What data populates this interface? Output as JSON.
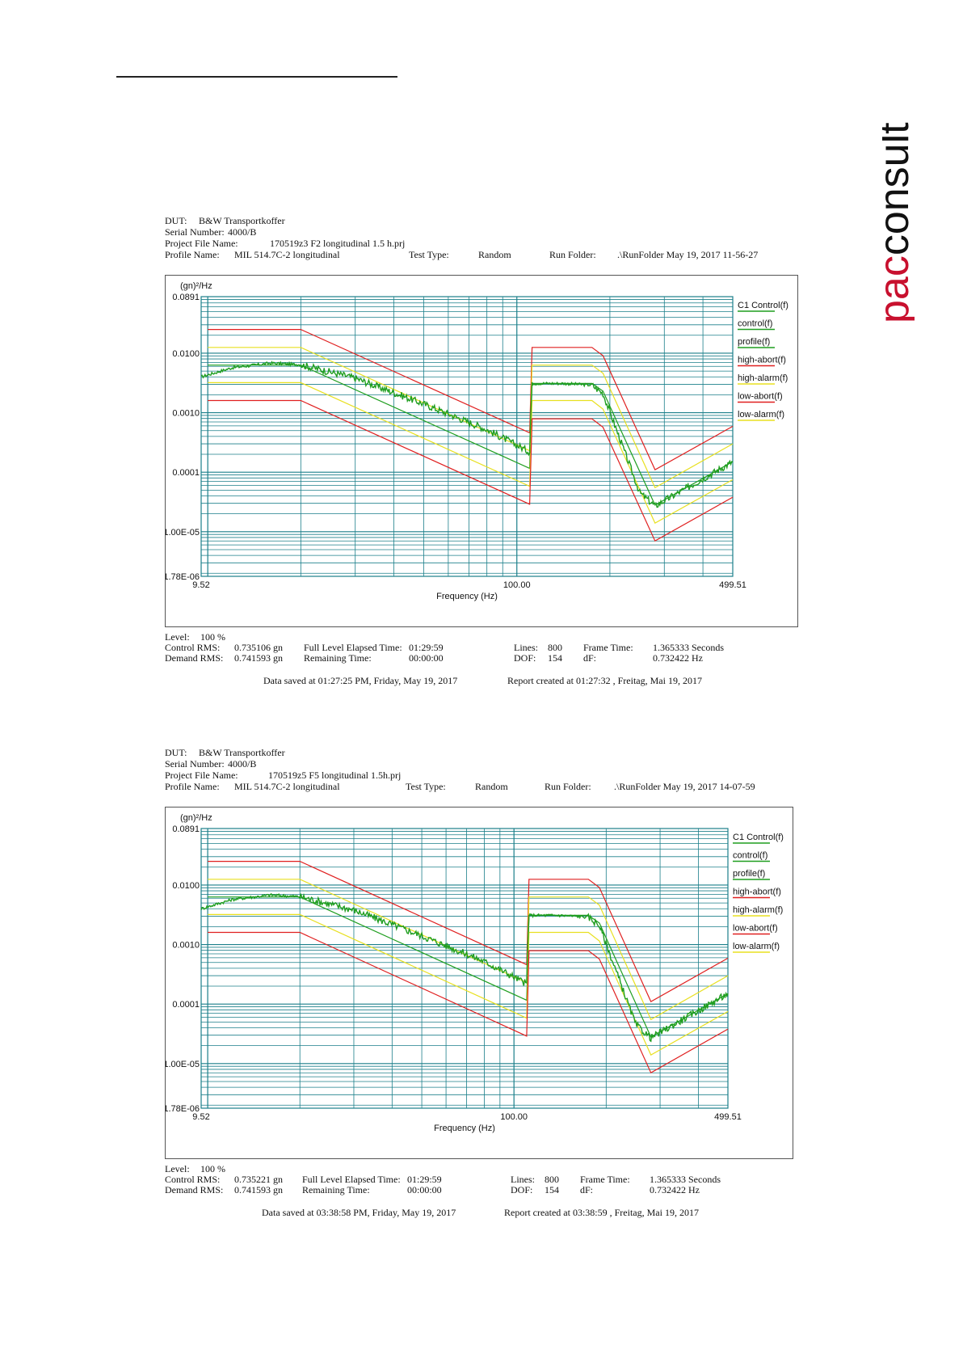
{
  "logo": {
    "pac": "pac",
    "rest": "consult",
    "pac_color": "#c8102e",
    "rest_color": "#111111"
  },
  "reports": [
    {
      "header": {
        "dut_label": "DUT:",
        "dut": "B&W Transportkoffer",
        "serial_label": "Serial Number:",
        "serial": "4000/B",
        "project_label": "Project File Name:",
        "project": "170519z3 F2 longitudinal 1.5 h.prj",
        "profile_label": "Profile Name:",
        "profile": "MIL 514.7C-2 longitudinal",
        "test_type_label": "Test Type:",
        "test_type": "Random",
        "run_folder_label": "Run Folder:",
        "run_folder": ".\\RunFolder May 19, 2017 11-56-27"
      },
      "footer": {
        "level_label": "Level:",
        "level": "100 %",
        "control_rms_label": "Control RMS:",
        "control_rms": "0.735106 gn",
        "demand_rms_label": "Demand RMS:",
        "demand_rms": "0.741593 gn",
        "elapsed_label": "Full Level Elapsed Time:",
        "elapsed": "01:29:59",
        "remaining_label": "Remaining Time:",
        "remaining": "00:00:00",
        "lines_label": "Lines:",
        "lines": "800",
        "dof_label": "DOF:",
        "dof": "154",
        "frame_time_label": "Frame Time:",
        "frame_time": "1.365333 Seconds",
        "df_label": "dF:",
        "df": "0.732422 Hz",
        "saved": "Data saved at 01:27:25 PM, Friday, May 19, 2017",
        "created": "Report created at 01:27:32 , Freitag, Mai 19, 2017"
      }
    },
    {
      "header": {
        "dut_label": "DUT:",
        "dut": "B&W Transportkoffer",
        "serial_label": "Serial Number:",
        "serial": "4000/B",
        "project_label": "Project File Name:",
        "project": "170519z5 F5 longitudinal 1.5h.prj",
        "profile_label": "Profile Name:",
        "profile": "MIL 514.7C-2 longitudinal",
        "test_type_label": "Test Type:",
        "test_type": "Random",
        "run_folder_label": "Run Folder:",
        "run_folder": ".\\RunFolder May 19, 2017 14-07-59"
      },
      "footer": {
        "level_label": "Level:",
        "level": "100 %",
        "control_rms_label": "Control RMS:",
        "control_rms": "0.735221 gn",
        "demand_rms_label": "Demand RMS:",
        "demand_rms": "0.741593 gn",
        "elapsed_label": "Full Level Elapsed Time:",
        "elapsed": "01:29:59",
        "remaining_label": "Remaining Time:",
        "remaining": "00:00:00",
        "lines_label": "Lines:",
        "lines": "800",
        "dof_label": "DOF:",
        "dof": "154",
        "frame_time_label": "Frame Time:",
        "frame_time": "1.365333 Seconds",
        "df_label": "dF:",
        "df": "0.732422 Hz",
        "saved": "Data saved at 03:38:58 PM, Friday, May 19, 2017",
        "created": "Report created at 03:38:59 , Freitag, Mai 19, 2017"
      }
    }
  ],
  "chart_data": [
    {
      "type": "line",
      "xlabel": "Frequency (Hz)",
      "ylabel": "(gn)²/Hz",
      "xscale": "log",
      "yscale": "log",
      "xlim": [
        9.52,
        499.51
      ],
      "ylim": [
        1.78e-06,
        0.0891
      ],
      "x_tick_labels": [
        {
          "x": 9.52,
          "label": "9.52"
        },
        {
          "x": 100,
          "label": "100.00"
        },
        {
          "x": 499.51,
          "label": "499.51"
        }
      ],
      "y_tick_labels": [
        {
          "y": 0.0891,
          "label": "0.0891"
        },
        {
          "y": 0.01,
          "label": "0.0100"
        },
        {
          "y": 0.001,
          "label": "0.0010"
        },
        {
          "y": 0.0001,
          "label": "0.0001"
        },
        {
          "y": 1e-05,
          "label": "1.00E-05"
        },
        {
          "y": 1.78e-06,
          "label": "1.78E-06"
        }
      ],
      "grid": true,
      "legend_position": "right",
      "legend": [
        {
          "name": "C1 Control(f)",
          "color": "#1f9e1f"
        },
        {
          "name": "control(f)",
          "color": "#1f9e1f"
        },
        {
          "name": "profile(f)",
          "color": "#1f9e1f"
        },
        {
          "name": "high-abort(f)",
          "color": "#e02020"
        },
        {
          "name": "high-alarm(f)",
          "color": "#e8e020"
        },
        {
          "name": "low-abort(f)",
          "color": "#e02020"
        },
        {
          "name": "low-alarm(f)",
          "color": "#e8e020"
        }
      ],
      "series": [
        {
          "name": "high-abort(f)",
          "color": "#e02020",
          "x": [
            10,
            20,
            110,
            112,
            175,
            190,
            280,
            499.51
          ],
          "y": [
            0.025,
            0.025,
            0.00046,
            0.0125,
            0.0125,
            0.0091,
            0.00011,
            0.00059
          ]
        },
        {
          "name": "high-alarm(f)",
          "color": "#e8e020",
          "x": [
            10,
            20,
            110,
            112,
            175,
            190,
            280,
            499.51
          ],
          "y": [
            0.0125,
            0.0125,
            0.00023,
            0.0063,
            0.0063,
            0.0046,
            5.5e-05,
            0.0003
          ]
        },
        {
          "name": "profile(f)",
          "color": "#1f9e1f",
          "x": [
            10,
            20,
            110,
            112,
            175,
            190,
            280,
            499.51
          ],
          "y": [
            0.0063,
            0.0063,
            0.000116,
            0.0031,
            0.0031,
            0.0023,
            2.8e-05,
            0.00015
          ]
        },
        {
          "name": "low-alarm(f)",
          "color": "#e8e020",
          "x": [
            10,
            20,
            110,
            112,
            175,
            190,
            280,
            499.51
          ],
          "y": [
            0.0032,
            0.0032,
            5.8e-05,
            0.0016,
            0.0016,
            0.00115,
            1.4e-05,
            7.5e-05
          ]
        },
        {
          "name": "low-abort(f)",
          "color": "#e02020",
          "x": [
            10,
            20,
            110,
            112,
            175,
            190,
            280,
            499.51
          ],
          "y": [
            0.0016,
            0.0016,
            2.9e-05,
            0.00079,
            0.00079,
            0.00057,
            7e-06,
            3.8e-05
          ]
        },
        {
          "name": "control(f)",
          "color": "#1f9e1f",
          "x": [
            9.52,
            12,
            16,
            20,
            30,
            50,
            80,
            110,
            111,
            112,
            140,
            175,
            190,
            250,
            280,
            499.51
          ],
          "y": [
            0.004,
            0.0057,
            0.0068,
            0.0064,
            0.0038,
            0.0014,
            0.00052,
            0.00022,
            0.001,
            0.0031,
            0.0031,
            0.0029,
            0.0021,
            4.5e-05,
            2.7e-05,
            0.00015
          ]
        }
      ]
    },
    {
      "type": "line",
      "xlabel": "Frequency (Hz)",
      "ylabel": "(gn)²/Hz",
      "xscale": "log",
      "yscale": "log",
      "xlim": [
        9.52,
        499.51
      ],
      "ylim": [
        1.78e-06,
        0.0891
      ],
      "x_tick_labels": [
        {
          "x": 9.52,
          "label": "9.52"
        },
        {
          "x": 100,
          "label": "100.00"
        },
        {
          "x": 499.51,
          "label": "499.51"
        }
      ],
      "y_tick_labels": [
        {
          "y": 0.0891,
          "label": "0.0891"
        },
        {
          "y": 0.01,
          "label": "0.0100"
        },
        {
          "y": 0.001,
          "label": "0.0010"
        },
        {
          "y": 0.0001,
          "label": "0.0001"
        },
        {
          "y": 1e-05,
          "label": "1.00E-05"
        },
        {
          "y": 1.78e-06,
          "label": "1.78E-06"
        }
      ],
      "grid": true,
      "legend_position": "right",
      "legend": [
        {
          "name": "C1 Control(f)",
          "color": "#1f9e1f"
        },
        {
          "name": "control(f)",
          "color": "#1f9e1f"
        },
        {
          "name": "profile(f)",
          "color": "#1f9e1f"
        },
        {
          "name": "high-abort(f)",
          "color": "#e02020"
        },
        {
          "name": "high-alarm(f)",
          "color": "#e8e020"
        },
        {
          "name": "low-abort(f)",
          "color": "#e02020"
        },
        {
          "name": "low-alarm(f)",
          "color": "#e8e020"
        }
      ],
      "series": [
        {
          "name": "high-abort(f)",
          "color": "#e02020",
          "x": [
            10,
            20,
            110,
            112,
            175,
            190,
            280,
            499.51
          ],
          "y": [
            0.025,
            0.025,
            0.00046,
            0.0125,
            0.0125,
            0.0091,
            0.00011,
            0.00059
          ]
        },
        {
          "name": "high-alarm(f)",
          "color": "#e8e020",
          "x": [
            10,
            20,
            110,
            112,
            175,
            190,
            280,
            499.51
          ],
          "y": [
            0.0125,
            0.0125,
            0.00023,
            0.0063,
            0.0063,
            0.0046,
            5.5e-05,
            0.0003
          ]
        },
        {
          "name": "profile(f)",
          "color": "#1f9e1f",
          "x": [
            10,
            20,
            110,
            112,
            175,
            190,
            280,
            499.51
          ],
          "y": [
            0.0063,
            0.0063,
            0.000116,
            0.0031,
            0.0031,
            0.0023,
            2.8e-05,
            0.00015
          ]
        },
        {
          "name": "low-alarm(f)",
          "color": "#e8e020",
          "x": [
            10,
            20,
            110,
            112,
            175,
            190,
            280,
            499.51
          ],
          "y": [
            0.0032,
            0.0032,
            5.8e-05,
            0.0016,
            0.0016,
            0.00115,
            1.4e-05,
            7.5e-05
          ]
        },
        {
          "name": "low-abort(f)",
          "color": "#e02020",
          "x": [
            10,
            20,
            110,
            112,
            175,
            190,
            280,
            499.51
          ],
          "y": [
            0.0016,
            0.0016,
            2.9e-05,
            0.00079,
            0.00079,
            0.00057,
            7e-06,
            3.8e-05
          ]
        },
        {
          "name": "control(f)",
          "color": "#1f9e1f",
          "x": [
            9.52,
            12,
            16,
            20,
            30,
            50,
            80,
            110,
            111,
            112,
            140,
            175,
            190,
            250,
            280,
            499.51
          ],
          "y": [
            0.004,
            0.0057,
            0.0068,
            0.0064,
            0.0038,
            0.0014,
            0.00052,
            0.00022,
            0.001,
            0.0031,
            0.0031,
            0.0029,
            0.0021,
            4.5e-05,
            2.7e-05,
            0.00015
          ]
        }
      ]
    }
  ]
}
